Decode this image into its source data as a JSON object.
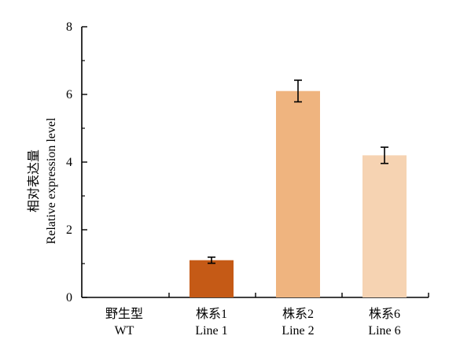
{
  "chart_data": {
    "type": "bar",
    "ylabel_cn": "相对表达量",
    "ylabel_en": "Relative expression level",
    "ylim": [
      0,
      8
    ],
    "yticks": [
      "0",
      "2",
      "4",
      "6",
      "8"
    ],
    "categories": [
      {
        "cn": "野生型",
        "en": "WT"
      },
      {
        "cn": "株系1",
        "en": "Line 1"
      },
      {
        "cn": "株系2",
        "en": "Line 2"
      },
      {
        "cn": "株系6",
        "en": "Line 6"
      }
    ],
    "values": [
      0,
      1.1,
      6.1,
      4.2
    ],
    "errors": [
      0,
      0.09,
      0.32,
      0.24
    ],
    "colors": [
      "#ffffff",
      "#c55a16",
      "#efb47f",
      "#f6d3b2"
    ]
  }
}
